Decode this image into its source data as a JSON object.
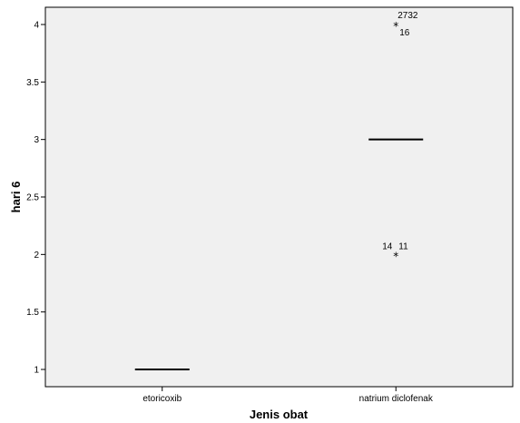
{
  "chart_data": {
    "type": "boxplot",
    "xlabel": "Jenis obat",
    "ylabel": "hari 6",
    "ylim": [
      0.85,
      4.15
    ],
    "yticks": [
      1,
      1.5,
      2,
      2.5,
      3,
      3.5,
      4
    ],
    "ytick_labels": [
      "1",
      "1.5",
      "2",
      "2.5",
      "3",
      "3.5",
      "4"
    ],
    "grid": false,
    "background": "#f0f0f0",
    "categories": [
      "etoricoxib",
      "natrium diclofenak"
    ],
    "boxes": [
      {
        "category": "etoricoxib",
        "min": 1,
        "q1": 1,
        "median": 1,
        "q3": 1,
        "max": 1,
        "outliers": []
      },
      {
        "category": "natrium diclofenak",
        "min": 3,
        "q1": 3,
        "median": 3,
        "q3": 3,
        "max": 3,
        "outliers": [
          {
            "value": 4,
            "labels": [
              "2732",
              "16"
            ]
          },
          {
            "value": 2,
            "labels": [
              "14",
              "11"
            ]
          }
        ]
      }
    ]
  }
}
